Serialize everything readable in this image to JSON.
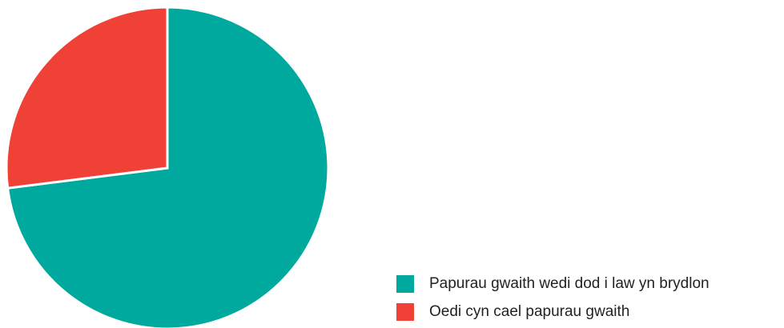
{
  "chart_data": {
    "type": "pie",
    "categories": [
      "Papurau gwaith wedi dod i law yn brydlon",
      "Oedi cyn cael papurau gwaith"
    ],
    "values": [
      73,
      27
    ],
    "colors": [
      "#00a99d",
      "#ef4136"
    ]
  }
}
